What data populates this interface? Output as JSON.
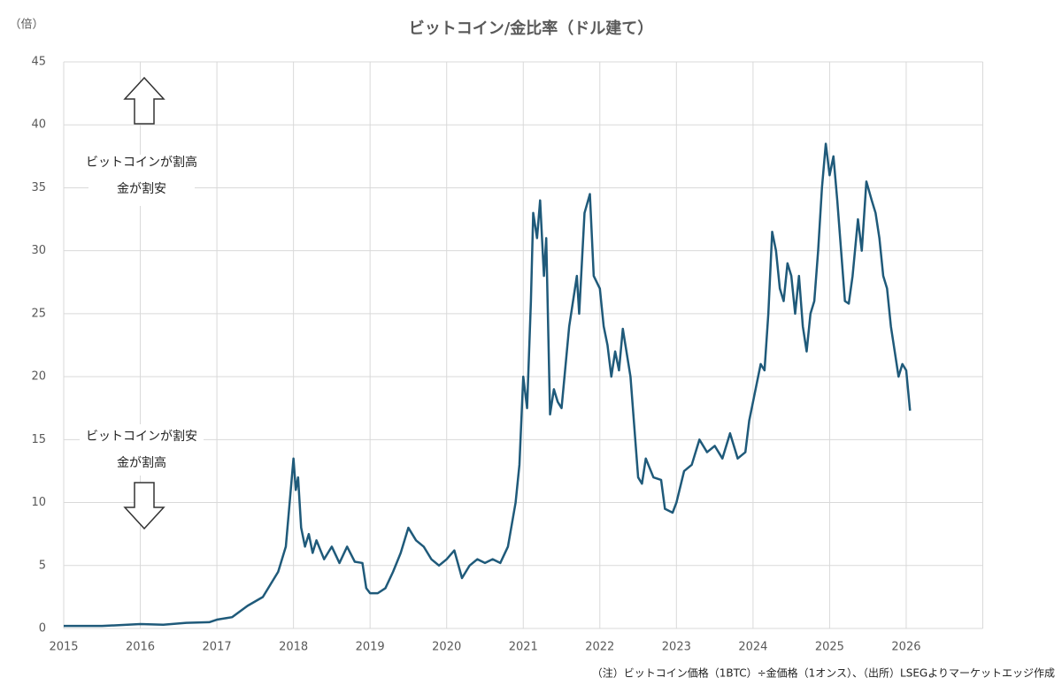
{
  "chart_data": {
    "type": "line",
    "title": "ビットコイン/金比率（ドル建て）",
    "y_label": "（倍）",
    "annotations": [
      "ビットコインが割高",
      "金が割安",
      "ビットコインが割安",
      "金が割高"
    ],
    "footnote": "（注）ビットコイン価格（1BTC）÷金価格（1オンス）、（出所）LSEGよりマーケットエッジ作成",
    "xlim": [
      2015,
      2027
    ],
    "xticks": [
      2015,
      2016,
      2017,
      2018,
      2019,
      2020,
      2021,
      2022,
      2023,
      2024,
      2025,
      2026
    ],
    "ylim": [
      0,
      45
    ],
    "yticks": [
      0,
      5,
      10,
      15,
      20,
      25,
      30,
      35,
      40,
      45
    ],
    "grid": true,
    "x": [
      2015.0,
      2015.5,
      2016.0,
      2016.3,
      2016.6,
      2016.9,
      2017.0,
      2017.2,
      2017.4,
      2017.6,
      2017.7,
      2017.8,
      2017.9,
      2017.95,
      2018.0,
      2018.03,
      2018.06,
      2018.1,
      2018.15,
      2018.2,
      2018.25,
      2018.3,
      2018.4,
      2018.5,
      2018.6,
      2018.7,
      2018.8,
      2018.9,
      2018.95,
      2019.0,
      2019.1,
      2019.2,
      2019.3,
      2019.4,
      2019.5,
      2019.6,
      2019.7,
      2019.8,
      2019.9,
      2020.0,
      2020.1,
      2020.2,
      2020.3,
      2020.4,
      2020.5,
      2020.6,
      2020.7,
      2020.8,
      2020.9,
      2020.95,
      2021.0,
      2021.05,
      2021.1,
      2021.13,
      2021.18,
      2021.22,
      2021.27,
      2021.3,
      2021.35,
      2021.4,
      2021.45,
      2021.5,
      2021.6,
      2021.7,
      2021.73,
      2021.8,
      2021.87,
      2021.92,
      2022.0,
      2022.05,
      2022.1,
      2022.15,
      2022.2,
      2022.25,
      2022.3,
      2022.4,
      2022.45,
      2022.5,
      2022.55,
      2022.6,
      2022.7,
      2022.8,
      2022.85,
      2022.95,
      2023.0,
      2023.1,
      2023.2,
      2023.3,
      2023.4,
      2023.5,
      2023.6,
      2023.7,
      2023.8,
      2023.9,
      2023.95,
      2024.0,
      2024.1,
      2024.15,
      2024.2,
      2024.25,
      2024.3,
      2024.35,
      2024.4,
      2024.45,
      2024.5,
      2024.55,
      2024.6,
      2024.65,
      2024.7,
      2024.75,
      2024.8,
      2024.85,
      2024.9,
      2024.95,
      2025.0,
      2025.05,
      2025.1,
      2025.15,
      2025.2,
      2025.25,
      2025.3,
      2025.37,
      2025.42,
      2025.48,
      2025.55,
      2025.6,
      2025.65,
      2025.7,
      2025.75,
      2025.8,
      2025.85,
      2025.9,
      2025.95,
      2026.0,
      2026.05
    ],
    "series": [
      {
        "name": "ビットコイン/金比率",
        "color": "#1f5a7a",
        "values": [
          0.2,
          0.2,
          0.35,
          0.3,
          0.45,
          0.5,
          0.7,
          0.9,
          1.8,
          2.5,
          3.5,
          4.5,
          6.5,
          10,
          13.5,
          11,
          12,
          8,
          6.5,
          7.5,
          6,
          7,
          5.5,
          6.5,
          5.2,
          6.5,
          5.3,
          5.2,
          3.2,
          2.8,
          2.8,
          3.2,
          4.5,
          6,
          8,
          7,
          6.5,
          5.5,
          5,
          5.5,
          6.2,
          4,
          5,
          5.5,
          5.2,
          5.5,
          5.2,
          6.5,
          10,
          13,
          20,
          17.5,
          26,
          33,
          31,
          34,
          28,
          31,
          17,
          19,
          18,
          17.5,
          24,
          28,
          25,
          33,
          34.5,
          28,
          27,
          24,
          22.5,
          20,
          22,
          20.5,
          23.8,
          20,
          16,
          12,
          11.5,
          13.5,
          12,
          11.8,
          9.5,
          9.2,
          10,
          12.5,
          13,
          15,
          14,
          14.5,
          13.5,
          15.5,
          13.5,
          14,
          16.5,
          18,
          21,
          20.5,
          25,
          31.5,
          30,
          27,
          26,
          29,
          28,
          25,
          28,
          24,
          22,
          25,
          26,
          30,
          35,
          38.5,
          36,
          37.5,
          34,
          30,
          26,
          25.8,
          28,
          32.5,
          30,
          35.5,
          34,
          33,
          31,
          28,
          27,
          24,
          22,
          20,
          21,
          20.5,
          17.3
        ]
      }
    ]
  }
}
